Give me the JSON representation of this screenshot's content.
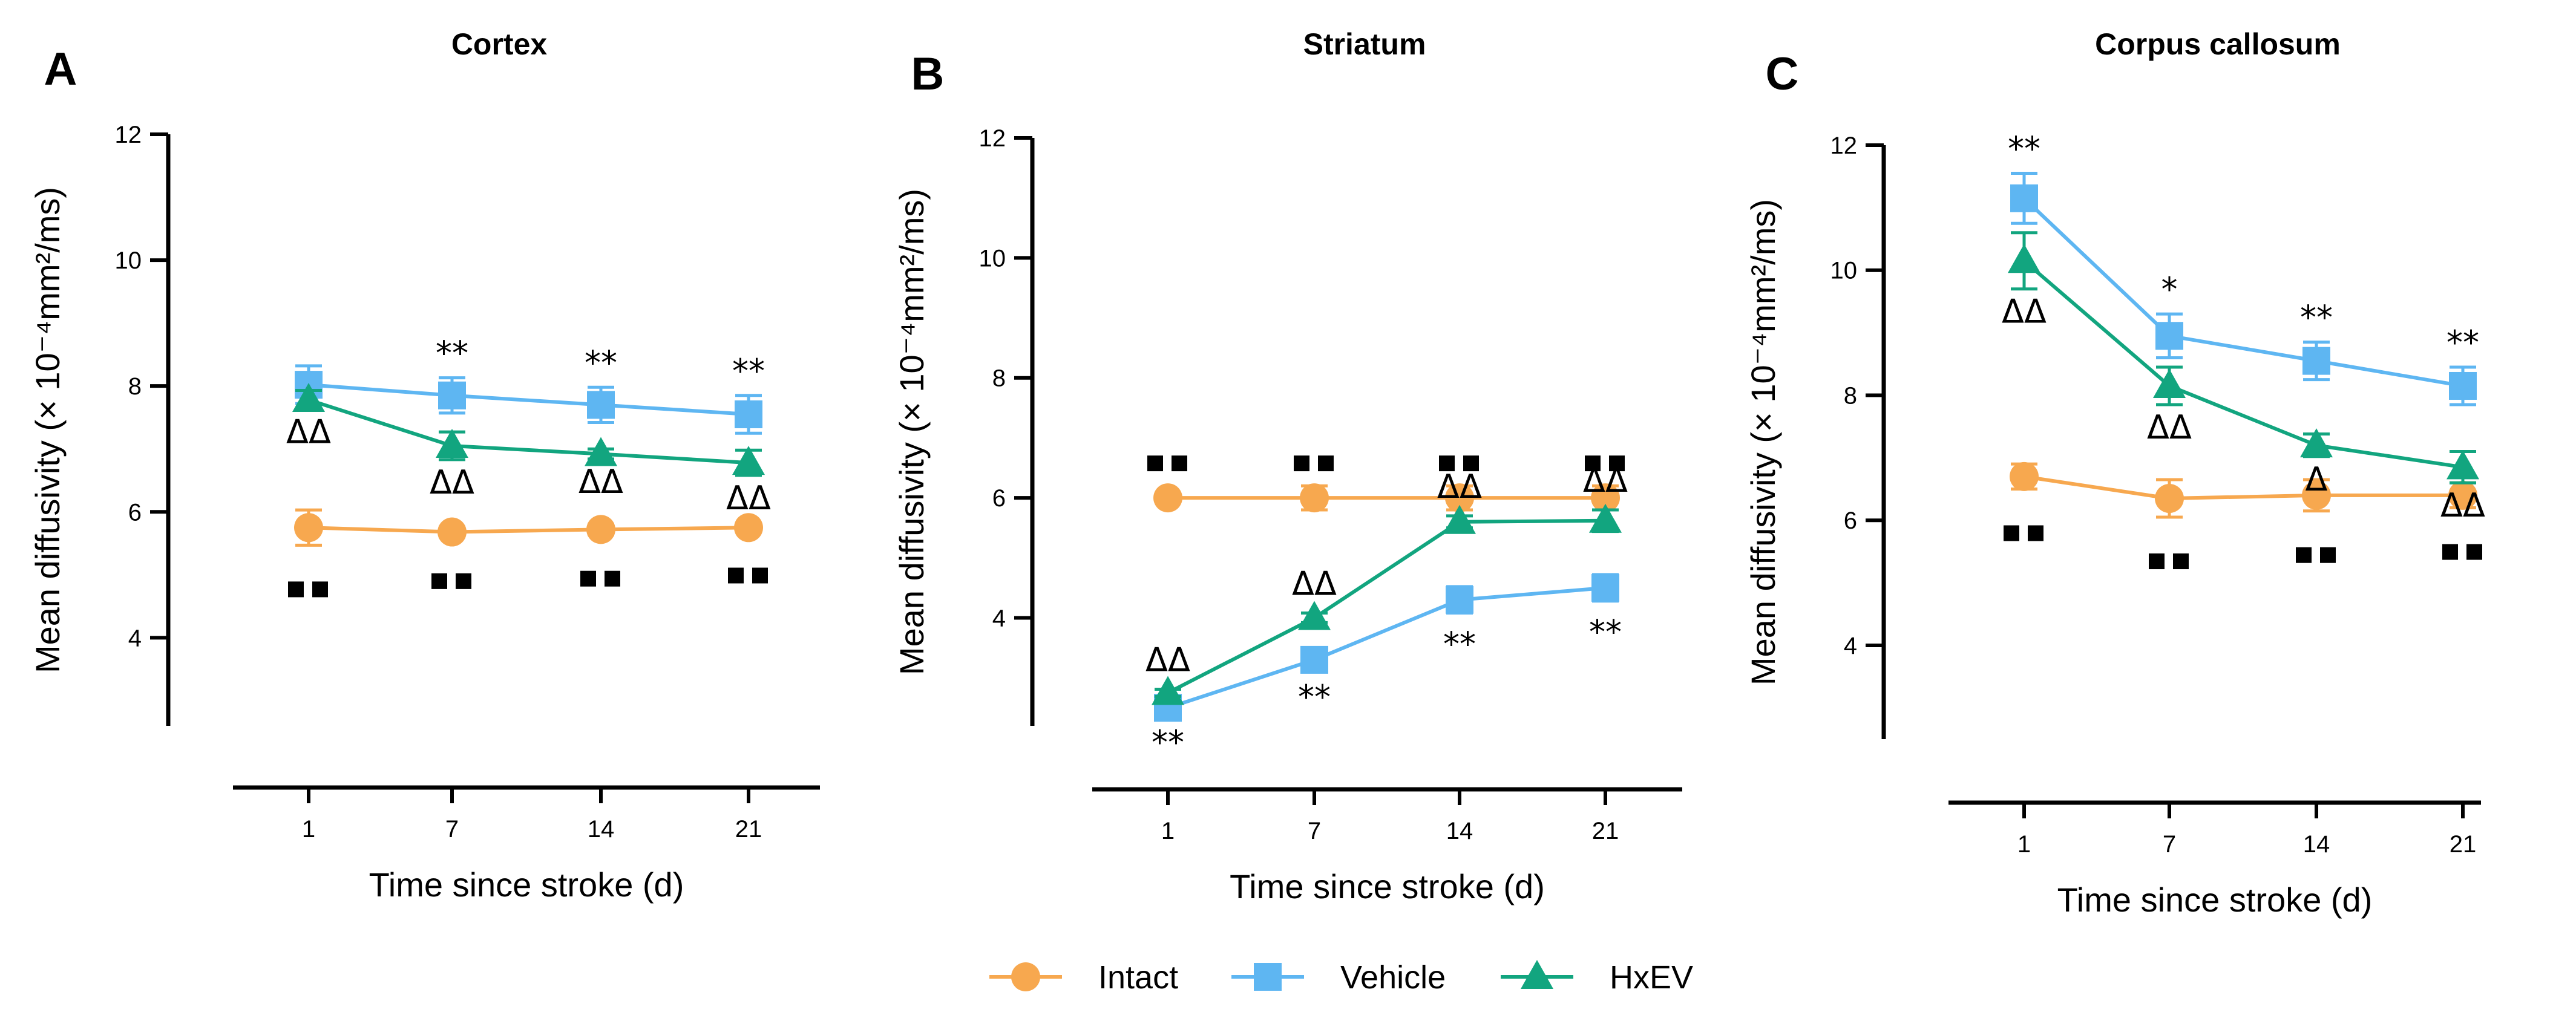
{
  "chart_data": [
    {
      "panel": "A",
      "title": "Cortex",
      "type": "line",
      "xlabel": "Time since stroke (d)",
      "ylabel": "Mean diffusivity (× 10⁻⁴mm²/ms)",
      "categories": [
        "1",
        "7",
        "14",
        "21"
      ],
      "ylim": [
        2.6,
        12
      ],
      "yticks": [
        4,
        6,
        8,
        10,
        12
      ],
      "series": [
        {
          "name": "Intact",
          "values": [
            5.75,
            5.68,
            5.72,
            5.75
          ],
          "errors": [
            0.28,
            0.08,
            0.08,
            0.06
          ],
          "annotations": [
            "■■",
            "■■",
            "■■",
            "■■"
          ]
        },
        {
          "name": "Vehicle",
          "values": [
            8.02,
            7.85,
            7.7,
            7.55
          ],
          "errors": [
            0.3,
            0.28,
            0.28,
            0.3
          ],
          "annotations": [
            "",
            "**",
            "**",
            "**"
          ]
        },
        {
          "name": "HxEV",
          "values": [
            7.78,
            7.05,
            6.92,
            6.78
          ],
          "errors": [
            0.15,
            0.22,
            0.08,
            0.2
          ],
          "annotations": [
            "ΔΔ",
            "ΔΔ",
            "ΔΔ",
            "ΔΔ"
          ]
        }
      ]
    },
    {
      "panel": "B",
      "title": "Striatum",
      "type": "line",
      "xlabel": "Time since stroke (d)",
      "ylabel": "Mean diffusivity (× 10⁻⁴mm²/ms)",
      "categories": [
        "1",
        "7",
        "14",
        "21"
      ],
      "ylim": [
        2.2,
        12
      ],
      "yticks": [
        4,
        6,
        8,
        10,
        12
      ],
      "series": [
        {
          "name": "Intact",
          "values": [
            6.0,
            6.0,
            6.0,
            6.0
          ],
          "errors": [
            0.06,
            0.2,
            0.2,
            0.2
          ],
          "annotations": [
            "■■",
            "■■",
            "■■",
            "■■"
          ]
        },
        {
          "name": "Vehicle",
          "values": [
            2.5,
            3.3,
            4.3,
            4.5
          ],
          "errors": [
            0.06,
            0.1,
            0.22,
            0.22
          ],
          "annotations": [
            "**",
            "**",
            "**",
            "**"
          ]
        },
        {
          "name": "HxEV",
          "values": [
            2.75,
            4.0,
            5.6,
            5.62
          ],
          "errors": [
            0.06,
            0.08,
            0.1,
            0.18
          ],
          "annotations": [
            "ΔΔ",
            "ΔΔ",
            "ΔΔ",
            "ΔΔ"
          ]
        }
      ]
    },
    {
      "panel": "C",
      "title": "Corpus callosum",
      "type": "line",
      "xlabel": "Time since stroke (d)",
      "ylabel": "Mean diffusivity (× 10⁻⁴mm²/ms)",
      "categories": [
        "1",
        "7",
        "14",
        "21"
      ],
      "ylim": [
        2.5,
        12
      ],
      "yticks": [
        4,
        6,
        8,
        10,
        12
      ],
      "series": [
        {
          "name": "Intact",
          "values": [
            6.7,
            6.35,
            6.4,
            6.4
          ],
          "errors": [
            0.2,
            0.3,
            0.25,
            0.2
          ],
          "annotations": [
            "■■",
            "■■",
            "■■",
            "■■"
          ]
        },
        {
          "name": "Vehicle",
          "values": [
            11.15,
            8.95,
            8.55,
            8.15
          ],
          "errors": [
            0.4,
            0.35,
            0.3,
            0.3
          ],
          "annotations": [
            "**",
            "*",
            "**",
            "**"
          ]
        },
        {
          "name": "HxEV",
          "values": [
            10.15,
            8.15,
            7.2,
            6.85
          ],
          "errors": [
            0.45,
            0.3,
            0.18,
            0.25
          ],
          "annotations": [
            "ΔΔ",
            "ΔΔ",
            "Δ",
            "ΔΔ"
          ]
        }
      ]
    }
  ],
  "legend": {
    "position": "bottom-center",
    "items": [
      {
        "name": "Intact",
        "color": "#F7A84F",
        "marker": "circle"
      },
      {
        "name": "Vehicle",
        "color": "#5EB6F2",
        "marker": "square"
      },
      {
        "name": "HxEV",
        "color": "#12A57F",
        "marker": "triangle"
      }
    ]
  }
}
